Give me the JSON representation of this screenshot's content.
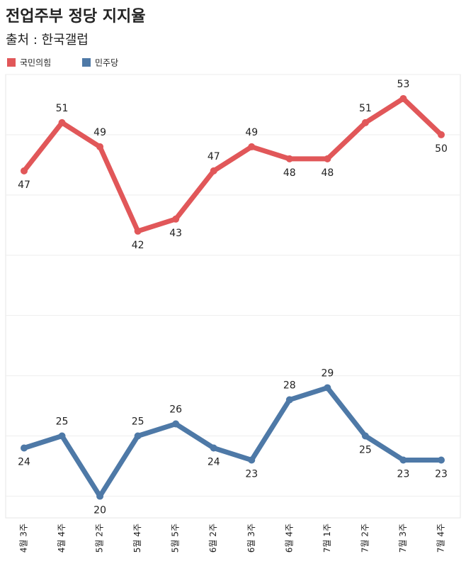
{
  "chart_data": {
    "type": "line",
    "title": "전업주부 정당 지지율",
    "subtitle": "출처 : 한국갤럽",
    "categories": [
      "4월 3주",
      "4월 4주",
      "5월 2주",
      "5월 4주",
      "5월 5주",
      "6월 2주",
      "6월 3주",
      "6월 4주",
      "7월 1주",
      "7월 2주",
      "7월 3주",
      "7월 4주"
    ],
    "series": [
      {
        "name": "국민의힘",
        "color": "#e15759",
        "values": [
          47,
          51,
          49,
          42,
          43,
          47,
          49,
          48,
          48,
          51,
          53,
          50
        ]
      },
      {
        "name": "민주당",
        "color": "#4e79a7",
        "values": [
          24,
          25,
          20,
          25,
          26,
          24,
          23,
          28,
          29,
          25,
          23,
          23
        ]
      }
    ],
    "ylim": [
      18.2,
      55
    ],
    "yticks": [
      20,
      25,
      30,
      35,
      40,
      45,
      50,
      55
    ],
    "grid": true
  }
}
